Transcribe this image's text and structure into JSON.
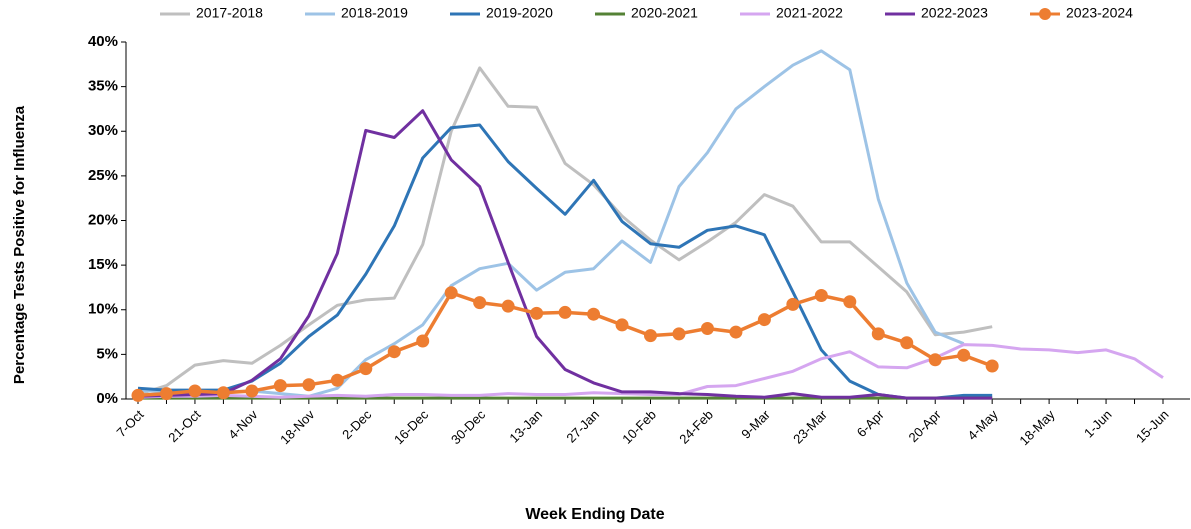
{
  "chart_data": {
    "type": "line",
    "x_label": "Week Ending Date",
    "y_label": "Percentage Tests Positive for Influenza",
    "categories": [
      "7-Oct",
      null,
      "21-Oct",
      null,
      "4-Nov",
      null,
      "18-Nov",
      null,
      "2-Dec",
      null,
      "16-Dec",
      null,
      "30-Dec",
      null,
      "13-Jan",
      null,
      "27-Jan",
      null,
      "10-Feb",
      null,
      "24-Feb",
      null,
      "9-Mar",
      null,
      "23-Mar",
      null,
      "6-Apr",
      null,
      "20-Apr",
      null,
      "4-May",
      null,
      "18-May",
      null,
      "1-Jun",
      null,
      "15-Jun"
    ],
    "ylim": [
      0,
      40
    ],
    "yticks": [
      {
        "value": 0,
        "label": "0%"
      },
      {
        "value": 5,
        "label": "5%"
      },
      {
        "value": 10,
        "label": "10%"
      },
      {
        "value": 15,
        "label": "15%"
      },
      {
        "value": 20,
        "label": "20%"
      },
      {
        "value": 25,
        "label": "25%"
      },
      {
        "value": 30,
        "label": "30%"
      },
      {
        "value": 35,
        "label": "35%"
      },
      {
        "value": 40,
        "label": "40%"
      }
    ],
    "legend": "top",
    "series": [
      {
        "name": "2017-2018",
        "color": "#bfbfbf",
        "values": [
          0.5,
          1.5,
          3.8,
          4.3,
          4.0,
          6.0,
          8.3,
          10.5,
          11.1,
          11.3,
          17.3,
          30.0,
          37.1,
          32.8,
          32.7,
          26.4,
          24.0,
          20.5,
          17.8,
          15.6,
          17.6,
          19.8,
          22.9,
          21.6,
          17.6,
          17.6,
          14.8,
          12.0,
          7.2,
          7.5,
          8.1,
          null,
          null,
          null,
          null,
          null,
          null
        ]
      },
      {
        "name": "2018-2019",
        "color": "#9dc3e6",
        "values": [
          1.0,
          0.8,
          0.7,
          0.8,
          0.9,
          0.6,
          0.3,
          1.2,
          4.4,
          6.2,
          8.3,
          12.7,
          14.6,
          15.2,
          12.2,
          14.2,
          14.6,
          17.7,
          15.3,
          23.8,
          27.6,
          32.5,
          35.0,
          37.4,
          39.0,
          36.9,
          22.4,
          13.0,
          7.5,
          6.2,
          null,
          null,
          null,
          null,
          null,
          null,
          null
        ]
      },
      {
        "name": "2019-2020",
        "color": "#2e75b6",
        "values": [
          1.2,
          1.0,
          1.0,
          1.0,
          2.0,
          4.0,
          7.0,
          9.4,
          14.0,
          19.4,
          27.0,
          30.4,
          30.7,
          26.6,
          23.6,
          20.7,
          24.5,
          19.9,
          17.4,
          17.0,
          18.9,
          19.4,
          18.4,
          12.0,
          5.5,
          2.0,
          0.5,
          0.1,
          0.1,
          0.4,
          0.4,
          null,
          null,
          null,
          null,
          null,
          null
        ]
      },
      {
        "name": "2020-2021",
        "color": "#548235",
        "values": [
          0.1,
          0.1,
          0.1,
          0.1,
          0.1,
          0.1,
          0.1,
          0.1,
          0.1,
          0.1,
          0.1,
          0.1,
          0.1,
          0.1,
          0.1,
          0.1,
          0.1,
          0.1,
          0.1,
          0.1,
          0.1,
          0.1,
          0.1,
          0.1,
          0.1,
          0.1,
          0.1,
          0.1,
          0.1,
          0.1,
          0.1,
          null,
          null,
          null,
          null,
          null,
          null
        ]
      },
      {
        "name": "2021-2022",
        "color": "#d5a6f0",
        "values": [
          0.2,
          0.3,
          0.3,
          0.4,
          0.3,
          0.2,
          0.3,
          0.4,
          0.3,
          0.5,
          0.5,
          0.4,
          0.4,
          0.6,
          0.5,
          0.5,
          0.7,
          0.6,
          0.5,
          0.5,
          1.4,
          1.5,
          2.3,
          3.1,
          4.5,
          5.3,
          3.6,
          3.5,
          4.6,
          6.1,
          6.0,
          5.6,
          5.5,
          5.2,
          5.5,
          4.5,
          2.4
        ]
      },
      {
        "name": "2022-2023",
        "color": "#7030a0",
        "values": [
          0.3,
          0.4,
          0.5,
          0.6,
          2.1,
          4.5,
          9.3,
          16.3,
          30.1,
          29.3,
          32.3,
          26.8,
          23.8,
          15.3,
          7.0,
          3.3,
          1.8,
          0.8,
          0.8,
          0.6,
          0.5,
          0.3,
          0.2,
          0.6,
          0.2,
          0.2,
          0.5,
          0.1,
          0.1,
          0.1,
          0.1,
          null,
          null,
          null,
          null,
          null,
          null
        ]
      },
      {
        "name": "2023-2024",
        "color": "#ed7d31",
        "markers": true,
        "values": [
          0.4,
          0.6,
          0.9,
          0.7,
          0.9,
          1.5,
          1.6,
          2.1,
          3.4,
          5.3,
          6.5,
          11.9,
          10.8,
          10.4,
          9.6,
          9.7,
          9.5,
          8.3,
          7.1,
          7.3,
          7.9,
          7.5,
          8.9,
          10.6,
          11.6,
          10.9,
          7.3,
          6.3,
          4.4,
          4.9,
          3.7,
          null,
          null,
          null,
          null,
          null,
          null
        ]
      }
    ]
  }
}
